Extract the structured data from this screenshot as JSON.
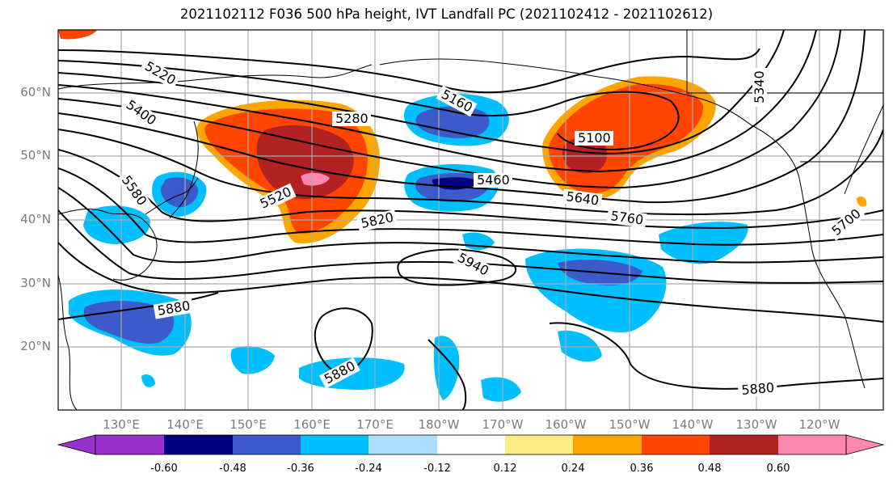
{
  "title": "2021102112 F036 500 hPa height, IVT Landfall PC (2021102412 - 2021102612)",
  "lat_labels": [
    "60°N",
    "50°N",
    "40°N",
    "30°N",
    "20°N"
  ],
  "lon_labels": [
    "130°E",
    "140°E",
    "150°E",
    "160°E",
    "170°E",
    "180°W",
    "170°W",
    "160°W",
    "150°W",
    "140°W",
    "130°W",
    "120°W"
  ],
  "contour_labels": [
    "5220",
    "5400",
    "5280",
    "5160",
    "5100",
    "5340",
    "5580",
    "5520",
    "5460",
    "5640",
    "5760",
    "5700",
    "5820",
    "5940",
    "5880",
    "5880",
    "5880"
  ],
  "colorbar": {
    "colors": [
      "#9932CC",
      "#000080",
      "#3A5BC9",
      "#00BFFF",
      "#ADDFFF",
      "#FFFFFF",
      "#FFEB82",
      "#FFA500",
      "#FF4500",
      "#B22222",
      "#FF88B0"
    ],
    "tick_labels": [
      "-0.60",
      "-0.48",
      "-0.36",
      "-0.24",
      "-0.12",
      "0.12",
      "0.24",
      "0.36",
      "0.48",
      "0.60"
    ]
  }
}
